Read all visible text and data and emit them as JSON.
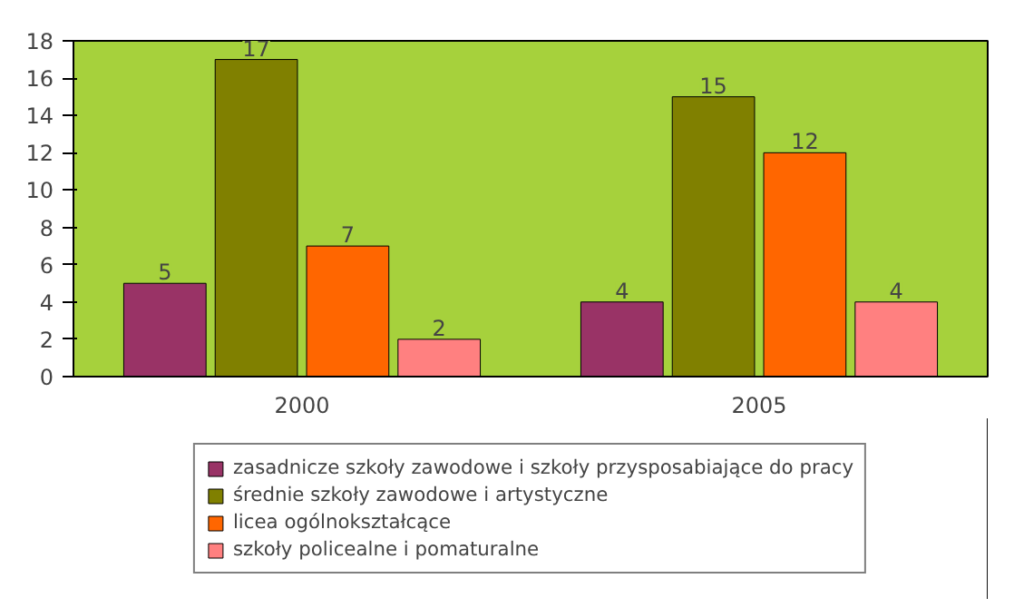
{
  "chart_data": {
    "type": "bar",
    "categories": [
      "2000",
      "2005"
    ],
    "series": [
      {
        "name": "zasadnicze szkoły zawodowe i szkoły przysposabiające do pracy",
        "color": "#993366",
        "values": [
          5,
          4
        ]
      },
      {
        "name": "średnie szkoły zawodowe i artystyczne",
        "color": "#808000",
        "values": [
          17,
          15
        ]
      },
      {
        "name": "licea ogólnokształcące",
        "color": "#ff6600",
        "values": [
          7,
          12
        ]
      },
      {
        "name": "szkoły policealne i pomaturalne",
        "color": "#ff8080",
        "values": [
          2,
          4
        ]
      }
    ],
    "ylim": [
      0,
      18
    ],
    "yticks": [
      0,
      2,
      4,
      6,
      8,
      10,
      12,
      14,
      16,
      18
    ],
    "data_labels": true,
    "legend": "bottom",
    "grid": false
  }
}
